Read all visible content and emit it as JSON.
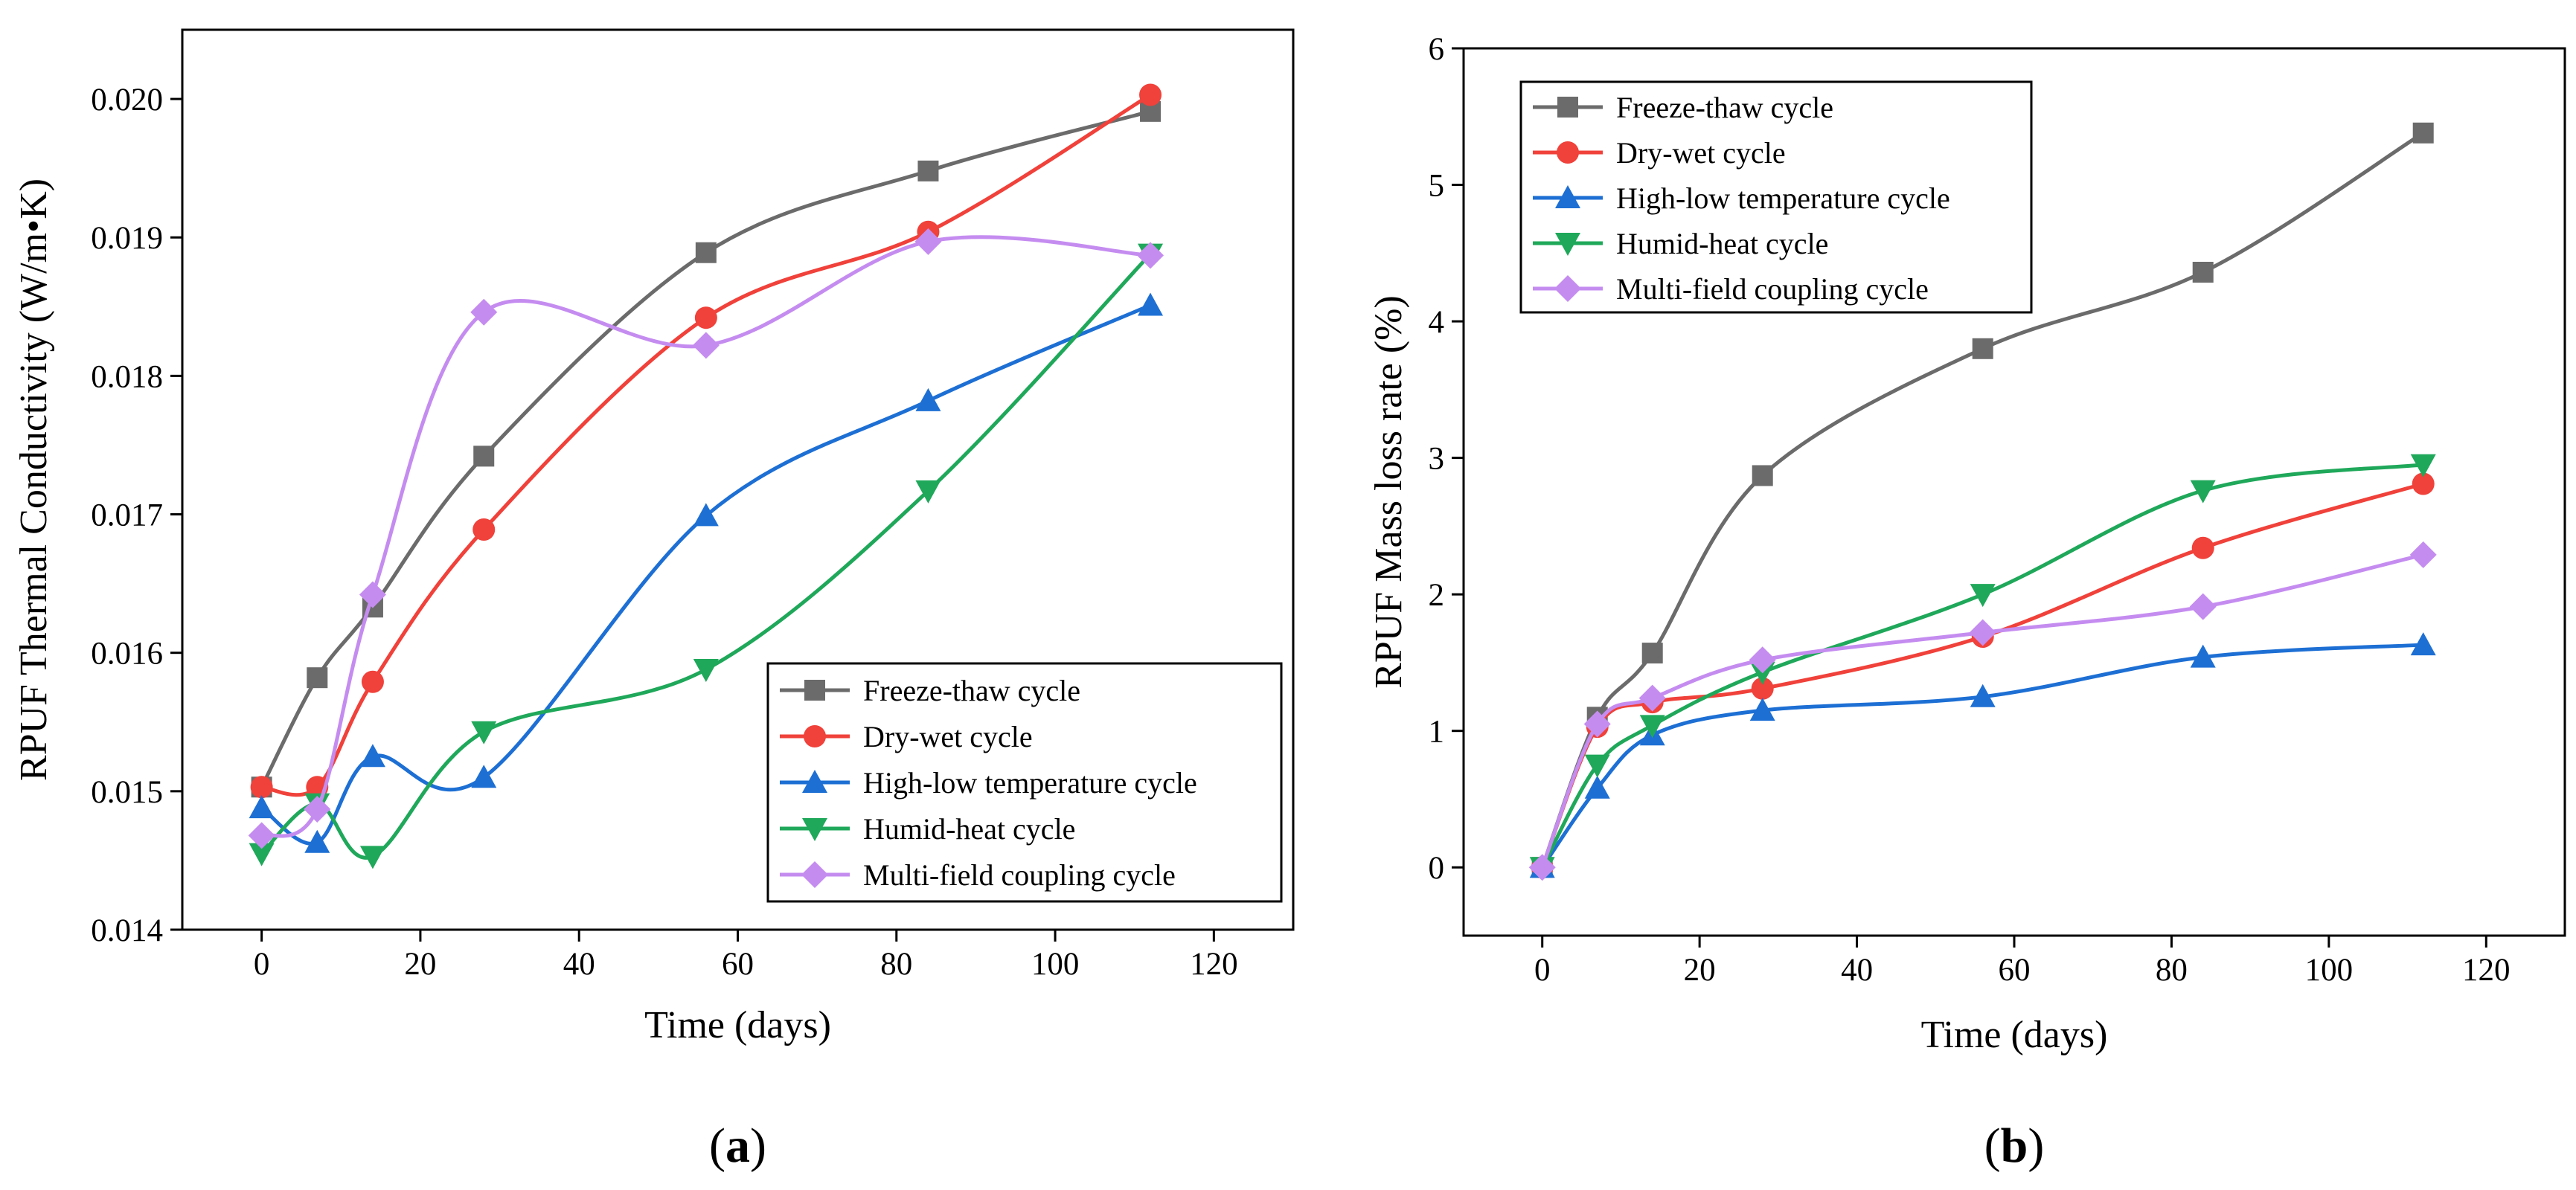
{
  "colors": {
    "freeze_thaw": "#6b6b6b",
    "dry_wet": "#f0413a",
    "high_low": "#1d6fd4",
    "humid_heat": "#1fa85a",
    "multi_field": "#c58cf0"
  },
  "chart_data": [
    {
      "type": "line",
      "panel": "a",
      "xlabel": "Time (days)",
      "ylabel": "RPUF Thermal Conductivity (W/m•K)",
      "xlim": [
        -10,
        130
      ],
      "ylim": [
        0.014,
        0.0205
      ],
      "x_ticks": [
        0,
        20,
        40,
        60,
        80,
        100,
        120
      ],
      "y_ticks": [
        0.014,
        0.015,
        0.016,
        0.017,
        0.018,
        0.019,
        0.02
      ],
      "x_tick_labels": [
        "0",
        "20",
        "40",
        "60",
        "80",
        "100",
        "120"
      ],
      "y_tick_labels": [
        "0.014",
        "0.015",
        "0.016",
        "0.017",
        "0.018",
        "0.019",
        "0.020"
      ],
      "legend_position": "bottom-right",
      "x": [
        0,
        7,
        14,
        28,
        56,
        84,
        112
      ],
      "series": [
        {
          "name": "Freeze-thaw cycle",
          "marker": "square",
          "color_key": "freeze_thaw",
          "values": [
            0.01503,
            0.01582,
            0.01633,
            0.01742,
            0.01889,
            0.01948,
            0.01991
          ]
        },
        {
          "name": "Dry-wet cycle",
          "marker": "circle",
          "color_key": "dry_wet",
          "values": [
            0.01503,
            0.01503,
            0.01579,
            0.01689,
            0.01842,
            0.01904,
            0.02003
          ]
        },
        {
          "name": "High-low temperature cycle",
          "marker": "triangle-up",
          "color_key": "high_low",
          "values": [
            0.01488,
            0.01463,
            0.01525,
            0.0151,
            0.01699,
            0.01782,
            0.01851
          ]
        },
        {
          "name": "Humid-heat cycle",
          "marker": "triangle-down",
          "color_key": "humid_heat",
          "values": [
            0.01455,
            0.01491,
            0.01453,
            0.01543,
            0.01588,
            0.01717,
            0.01888
          ]
        },
        {
          "name": "Multi-field coupling cycle",
          "marker": "diamond",
          "color_key": "multi_field",
          "values": [
            0.01468,
            0.01487,
            0.01642,
            0.01846,
            0.01822,
            0.01897,
            0.01887
          ]
        }
      ],
      "panel_label": {
        "open": "(",
        "letter": "a",
        "close": ")"
      }
    },
    {
      "type": "line",
      "panel": "b",
      "xlabel": "Time (days)",
      "ylabel": "RPUF Mass loss rate (%)",
      "xlim": [
        -10,
        130
      ],
      "ylim": [
        -0.5,
        6
      ],
      "x_ticks": [
        0,
        20,
        40,
        60,
        80,
        100,
        120
      ],
      "y_ticks": [
        0,
        1,
        2,
        3,
        4,
        5,
        6
      ],
      "x_tick_labels": [
        "0",
        "20",
        "40",
        "60",
        "80",
        "100",
        "120"
      ],
      "y_tick_labels": [
        "0",
        "1",
        "2",
        "3",
        "4",
        "5",
        "6"
      ],
      "legend_position": "top-left",
      "x": [
        0,
        7,
        14,
        28,
        56,
        84,
        112
      ],
      "series": [
        {
          "name": "Freeze-thaw cycle",
          "marker": "square",
          "color_key": "freeze_thaw",
          "values": [
            0,
            1.1,
            1.57,
            2.87,
            3.8,
            4.36,
            5.38
          ]
        },
        {
          "name": "Dry-wet cycle",
          "marker": "circle",
          "color_key": "dry_wet",
          "values": [
            0,
            1.03,
            1.21,
            1.31,
            1.69,
            2.34,
            2.81
          ]
        },
        {
          "name": "High-low temperature cycle",
          "marker": "triangle-up",
          "color_key": "high_low",
          "values": [
            0,
            0.58,
            0.97,
            1.15,
            1.25,
            1.54,
            1.63
          ]
        },
        {
          "name": "Humid-heat cycle",
          "marker": "triangle-down",
          "color_key": "humid_heat",
          "values": [
            0,
            0.75,
            1.04,
            1.43,
            2.0,
            2.76,
            2.95
          ]
        },
        {
          "name": "Multi-field coupling cycle",
          "marker": "diamond",
          "color_key": "multi_field",
          "values": [
            0,
            1.05,
            1.24,
            1.52,
            1.72,
            1.91,
            2.29
          ]
        }
      ],
      "panel_label": {
        "open": "(",
        "letter": "b",
        "close": ")"
      }
    }
  ]
}
